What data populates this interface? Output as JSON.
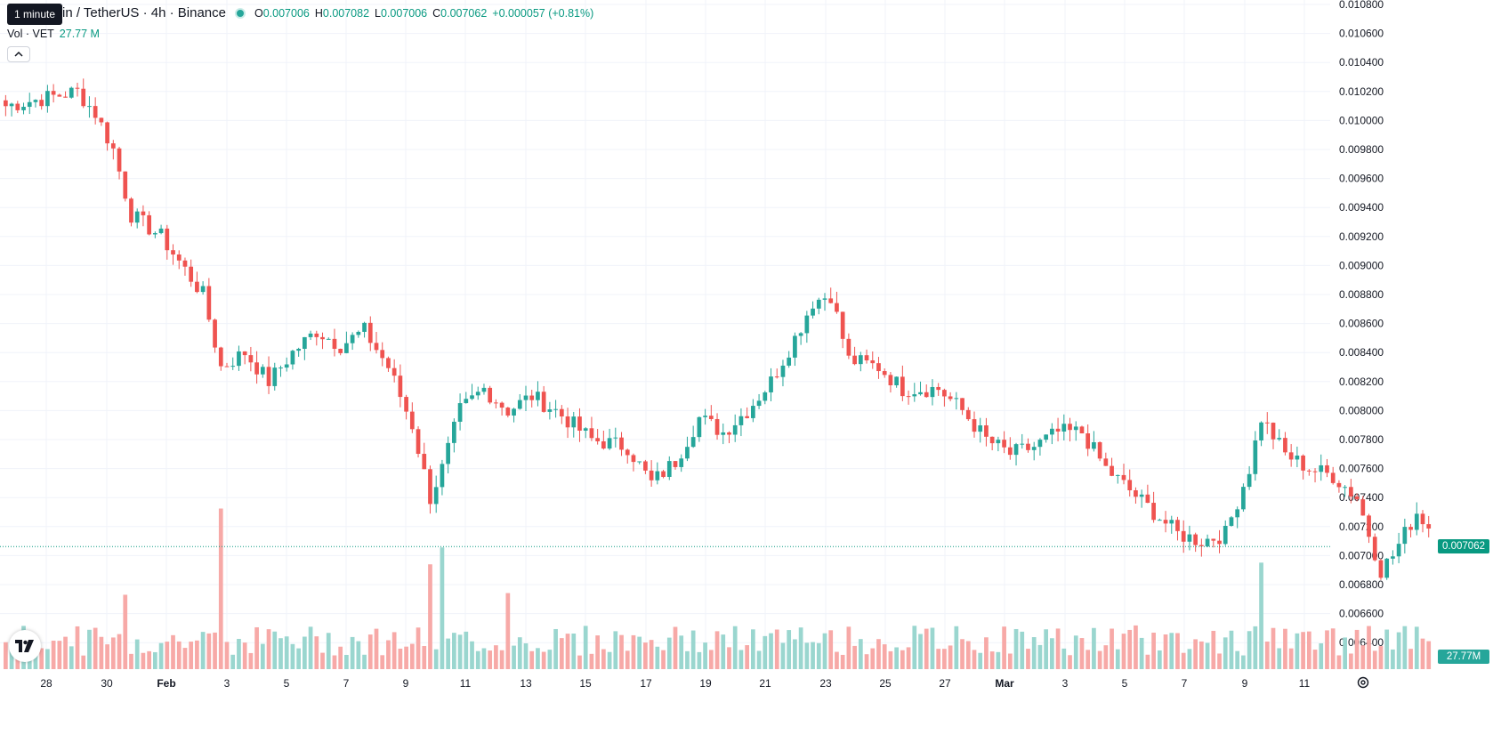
{
  "symbol_title": "VeChain / TetherUS · 4h · Binance",
  "symbol_title_visible": "in / TetherUS · 4h · Binance",
  "tooltip": "1 minute",
  "ohlc": {
    "o_label": "O",
    "o": "0.007006",
    "h_label": "H",
    "h": "0.007082",
    "l_label": "L",
    "l": "0.007006",
    "c_label": "C",
    "c": "0.007062",
    "change": "+0.000057 (+0.81%)"
  },
  "volume": {
    "label": "Vol · VET",
    "value": "27.77 M"
  },
  "colors": {
    "up": "#26a69a",
    "down": "#ef5350",
    "up_vol": "#9ad6cf",
    "down_vol": "#f7a9a7",
    "grid": "#f0f3fa",
    "axis_text": "#131722"
  },
  "last_price_label": "0.007062",
  "last_volume_label": "27.77M",
  "chart_data": {
    "type": "candlestick",
    "interval": "4h",
    "price_axis": {
      "ticks": [
        "0.010800",
        "0.010600",
        "0.010400",
        "0.010200",
        "0.010000",
        "0.009800",
        "0.009600",
        "0.009400",
        "0.009200",
        "0.009000",
        "0.008800",
        "0.008600",
        "0.008400",
        "0.008200",
        "0.008000",
        "0.007800",
        "0.007600",
        "0.007400",
        "0.007200",
        "0.007000",
        "0.006800",
        "0.006600",
        "0.006400"
      ],
      "range": [
        0.00632,
        0.0108
      ]
    },
    "time_axis": {
      "ticks": [
        "28",
        "30",
        "Feb",
        "3",
        "5",
        "7",
        "9",
        "11",
        "13",
        "15",
        "17",
        "19",
        "21",
        "23",
        "25",
        "27",
        "Mar",
        "3",
        "5",
        "7",
        "9",
        "11"
      ],
      "bold": [
        "Feb",
        "Mar"
      ]
    },
    "path": [
      {
        "bar": 0,
        "price": 0.0101
      },
      {
        "bar": 6,
        "price": 0.01015
      },
      {
        "bar": 12,
        "price": 0.0102
      },
      {
        "bar": 15,
        "price": 0.01005
      },
      {
        "bar": 18,
        "price": 0.0098
      },
      {
        "bar": 21,
        "price": 0.00935
      },
      {
        "bar": 26,
        "price": 0.0092
      },
      {
        "bar": 33,
        "price": 0.0088
      },
      {
        "bar": 36,
        "price": 0.0083
      },
      {
        "bar": 40,
        "price": 0.0084
      },
      {
        "bar": 44,
        "price": 0.0082
      },
      {
        "bar": 48,
        "price": 0.0084
      },
      {
        "bar": 52,
        "price": 0.00855
      },
      {
        "bar": 56,
        "price": 0.00845
      },
      {
        "bar": 60,
        "price": 0.00855
      },
      {
        "bar": 64,
        "price": 0.0083
      },
      {
        "bar": 68,
        "price": 0.0079
      },
      {
        "bar": 71,
        "price": 0.0074
      },
      {
        "bar": 73,
        "price": 0.0076
      },
      {
        "bar": 76,
        "price": 0.008
      },
      {
        "bar": 80,
        "price": 0.00815
      },
      {
        "bar": 84,
        "price": 0.008
      },
      {
        "bar": 88,
        "price": 0.0081
      },
      {
        "bar": 92,
        "price": 0.008
      },
      {
        "bar": 98,
        "price": 0.0078
      },
      {
        "bar": 104,
        "price": 0.00775
      },
      {
        "bar": 108,
        "price": 0.0075
      },
      {
        "bar": 112,
        "price": 0.00765
      },
      {
        "bar": 116,
        "price": 0.00795
      },
      {
        "bar": 120,
        "price": 0.00785
      },
      {
        "bar": 124,
        "price": 0.008
      },
      {
        "bar": 128,
        "price": 0.0082
      },
      {
        "bar": 132,
        "price": 0.0085
      },
      {
        "bar": 135,
        "price": 0.00875
      },
      {
        "bar": 138,
        "price": 0.0088
      },
      {
        "bar": 141,
        "price": 0.00835
      },
      {
        "bar": 146,
        "price": 0.0083
      },
      {
        "bar": 150,
        "price": 0.00815
      },
      {
        "bar": 156,
        "price": 0.00815
      },
      {
        "bar": 160,
        "price": 0.008
      },
      {
        "bar": 164,
        "price": 0.0078
      },
      {
        "bar": 168,
        "price": 0.0077
      },
      {
        "bar": 172,
        "price": 0.00775
      },
      {
        "bar": 176,
        "price": 0.00785
      },
      {
        "bar": 180,
        "price": 0.00785
      },
      {
        "bar": 184,
        "price": 0.0076
      },
      {
        "bar": 188,
        "price": 0.00745
      },
      {
        "bar": 192,
        "price": 0.0073
      },
      {
        "bar": 196,
        "price": 0.00715
      },
      {
        "bar": 200,
        "price": 0.0071
      },
      {
        "bar": 204,
        "price": 0.00715
      },
      {
        "bar": 208,
        "price": 0.0076
      },
      {
        "bar": 210,
        "price": 0.00795
      },
      {
        "bar": 214,
        "price": 0.0077
      },
      {
        "bar": 218,
        "price": 0.0076
      },
      {
        "bar": 222,
        "price": 0.00755
      },
      {
        "bar": 226,
        "price": 0.0074
      },
      {
        "bar": 230,
        "price": 0.0069
      },
      {
        "bar": 232,
        "price": 0.007
      },
      {
        "bar": 236,
        "price": 0.0073
      },
      {
        "bar": 240,
        "price": 0.0071
      },
      {
        "bar": 244,
        "price": 0.00725
      },
      {
        "bar": 248,
        "price": 0.00705
      },
      {
        "bar": 252,
        "price": 0.0071
      },
      {
        "bar": 256,
        "price": 0.0074
      },
      {
        "bar": 260,
        "price": 0.00745
      },
      {
        "bar": 264,
        "price": 0.00735
      },
      {
        "bar": 268,
        "price": 0.00725
      },
      {
        "bar": 272,
        "price": 0.00705
      },
      {
        "bar": 276,
        "price": 0.007
      },
      {
        "bar": 280,
        "price": 0.0069
      },
      {
        "bar": 284,
        "price": 0.00685
      },
      {
        "bar": 288,
        "price": 0.00695
      },
      {
        "bar": 292,
        "price": 0.00705
      },
      {
        "bar": 296,
        "price": 0.007062
      }
    ],
    "volume_spikes": [
      {
        "bar": 36,
        "value": 0.95
      },
      {
        "bar": 73,
        "value": 0.72
      },
      {
        "bar": 71,
        "value": 0.62
      },
      {
        "bar": 84,
        "value": 0.45
      },
      {
        "bar": 210,
        "value": 0.63
      },
      {
        "bar": 20,
        "value": 0.44
      }
    ]
  }
}
